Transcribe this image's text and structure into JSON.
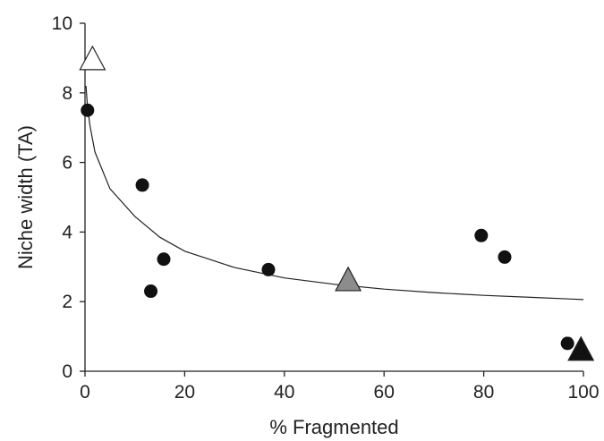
{
  "chart_data": {
    "type": "scatter",
    "title": "",
    "xlabel": "% Fragmented",
    "ylabel": "Niche width (TA)",
    "xlim": [
      0,
      100
    ],
    "ylim": [
      0,
      10
    ],
    "xticks": [
      "0",
      "20",
      "40",
      "60",
      "80",
      "100"
    ],
    "yticks": [
      "0",
      "2",
      "4",
      "6",
      "8",
      "10"
    ],
    "grid": false,
    "legend": "none",
    "series": [
      {
        "marker": "circle",
        "color": "#111111",
        "points": [
          {
            "x": 0.5,
            "y": 7.5
          },
          {
            "x": 11.5,
            "y": 5.35
          },
          {
            "x": 13.2,
            "y": 2.3
          },
          {
            "x": 15.8,
            "y": 3.22
          },
          {
            "x": 36.8,
            "y": 2.92
          },
          {
            "x": 79.5,
            "y": 3.9
          },
          {
            "x": 84.2,
            "y": 3.28
          },
          {
            "x": 96.8,
            "y": 0.8
          }
        ]
      },
      {
        "marker": "triangle",
        "points": [
          {
            "x": 1.5,
            "y": 9.0,
            "color": "#ffffff"
          },
          {
            "x": 52.8,
            "y": 2.65,
            "color": "#8c8c8c"
          },
          {
            "x": 99.5,
            "y": 0.65,
            "color": "#111111"
          }
        ]
      }
    ],
    "fit_curve": {
      "type": "power",
      "color": "#222222",
      "x": [
        0.2,
        0.5,
        1,
        2,
        5,
        10,
        15,
        20,
        30,
        40,
        50,
        60,
        70,
        80,
        90,
        100
      ],
      "y": [
        8.2,
        7.6,
        7.05,
        6.3,
        5.25,
        4.45,
        3.85,
        3.45,
        2.98,
        2.68,
        2.5,
        2.36,
        2.26,
        2.18,
        2.12,
        2.06
      ]
    }
  }
}
